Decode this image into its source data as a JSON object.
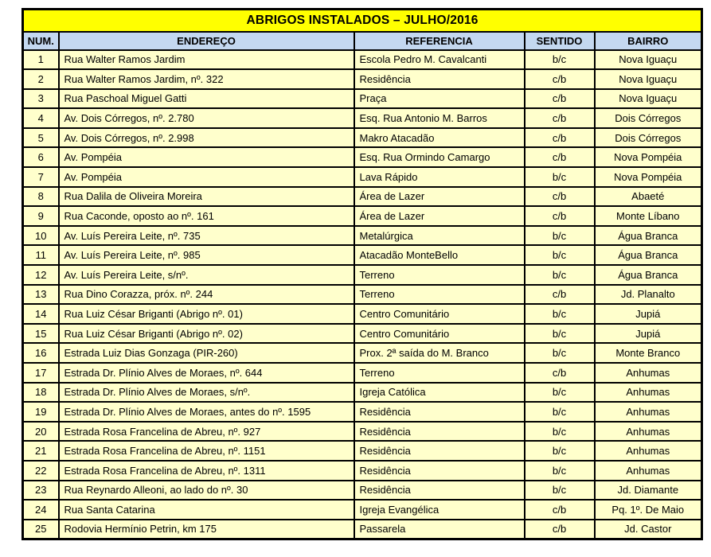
{
  "title": "ABRIGOS INSTALADOS  – JULHO/2016",
  "colors": {
    "title_bg": "#FFFF00",
    "header_bg": "#C4D8F0",
    "row_bg": "#FFFFCC",
    "border": "#000000",
    "text": "#000000"
  },
  "table": {
    "columns": [
      "NUM.",
      "ENDEREÇO",
      "REFERENCIA",
      "SENTIDO",
      "BAIRRO"
    ],
    "rows": [
      [
        "1",
        "Rua Walter Ramos Jardim",
        "Escola Pedro M. Cavalcanti",
        "b/c",
        "Nova Iguaçu"
      ],
      [
        "2",
        "Rua Walter Ramos Jardim, nº. 322",
        "Residência",
        "c/b",
        "Nova Iguaçu"
      ],
      [
        "3",
        "Rua Paschoal Miguel Gatti",
        "Praça",
        "c/b",
        "Nova Iguaçu"
      ],
      [
        "4",
        "Av. Dois Córregos, nº. 2.780",
        "Esq. Rua Antonio M. Barros",
        "c/b",
        "Dois Córregos"
      ],
      [
        "5",
        "Av. Dois Córregos, nº. 2.998",
        "Makro Atacadão",
        "c/b",
        "Dois Córregos"
      ],
      [
        "6",
        "Av. Pompéia",
        "Esq. Rua Ormindo Camargo",
        "c/b",
        "Nova Pompéia"
      ],
      [
        "7",
        "Av. Pompéia",
        "Lava Rápido",
        "b/c",
        "Nova Pompéia"
      ],
      [
        "8",
        "Rua Dalila de Oliveira Moreira",
        "Área de Lazer",
        "c/b",
        "Abaeté"
      ],
      [
        "9",
        "Rua Caconde, oposto ao nº. 161",
        "Área de Lazer",
        "c/b",
        "Monte Líbano"
      ],
      [
        "10",
        "Av. Luís Pereira Leite, nº. 735",
        "Metalúrgica",
        "b/c",
        "Água Branca"
      ],
      [
        "11",
        "Av. Luís Pereira Leite, nº. 985",
        "Atacadão MonteBello",
        "b/c",
        "Água Branca"
      ],
      [
        "12",
        "Av. Luís Pereira Leite, s/nº.",
        "Terreno",
        "b/c",
        "Água Branca"
      ],
      [
        "13",
        "Rua Dino Corazza, próx. nº. 244",
        "Terreno",
        "c/b",
        "Jd. Planalto"
      ],
      [
        "14",
        "Rua Luiz César Briganti (Abrigo nº. 01)",
        "Centro Comunitário",
        "b/c",
        "Jupiá"
      ],
      [
        "15",
        "Rua Luiz César Briganti (Abrigo nº. 02)",
        "Centro Comunitário",
        "b/c",
        "Jupiá"
      ],
      [
        "16",
        "Estrada Luiz Dias Gonzaga (PIR-260)",
        "Prox. 2ª saída do M. Branco",
        "b/c",
        "Monte Branco"
      ],
      [
        "17",
        "Estrada Dr. Plínio Alves de Moraes, nº. 644",
        "Terreno",
        "c/b",
        "Anhumas"
      ],
      [
        "18",
        "Estrada Dr. Plínio Alves de Moraes, s/nº.",
        "Igreja Católica",
        "b/c",
        "Anhumas"
      ],
      [
        "19",
        "Estrada Dr. Plínio Alves de Moraes, antes do nº. 1595",
        "Residência",
        "b/c",
        "Anhumas"
      ],
      [
        "20",
        "Estrada Rosa Francelina de Abreu, nº. 927",
        "Residência",
        "b/c",
        "Anhumas"
      ],
      [
        "21",
        "Estrada Rosa Francelina de Abreu, nº. 1151",
        "Residência",
        "b/c",
        "Anhumas"
      ],
      [
        "22",
        "Estrada Rosa Francelina de Abreu, nº. 1311",
        "Residência",
        "b/c",
        "Anhumas"
      ],
      [
        "23",
        "Rua Reynardo Alleoni, ao lado do nº. 30",
        "Residência",
        "b/c",
        "Jd. Diamante"
      ],
      [
        "24",
        "Rua Santa Catarina",
        "Igreja Evangélica",
        "c/b",
        "Pq. 1º. De Maio"
      ],
      [
        "25",
        "Rodovia Hermínio Petrin, km 175",
        "Passarela",
        "c/b",
        "Jd. Castor"
      ]
    ]
  }
}
